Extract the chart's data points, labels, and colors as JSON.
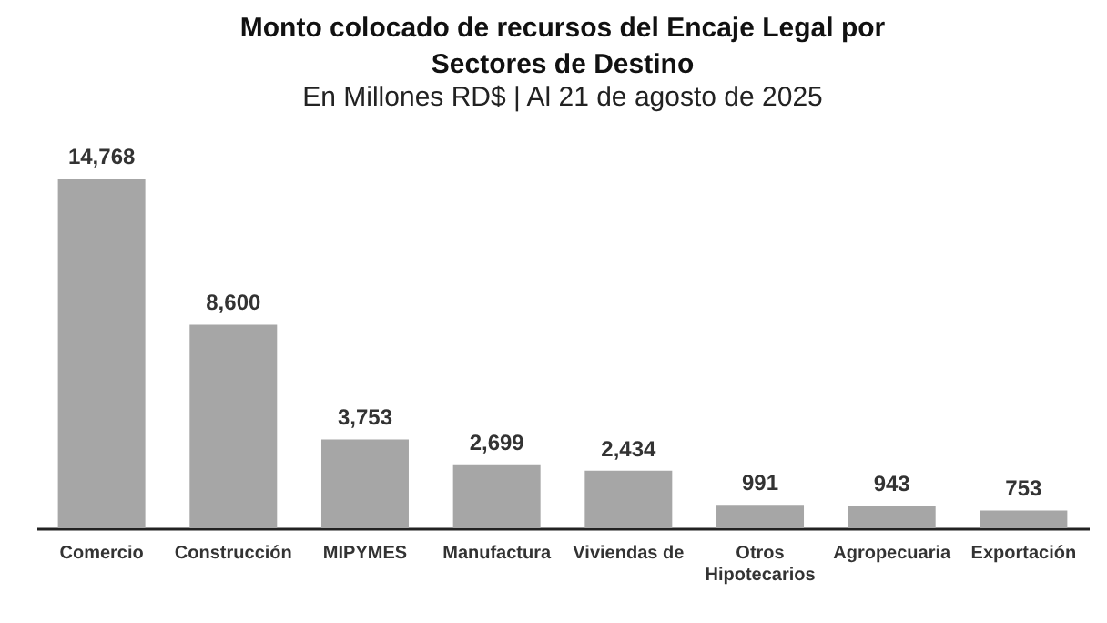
{
  "chart_data": {
    "type": "bar",
    "title": [
      "Monto colocado de recursos del Encaje Legal por",
      "Sectores de Destino"
    ],
    "subtitle": "En Millones  RD$ | Al 21 de agosto de 2025",
    "categories": [
      "Comercio",
      "Construcción",
      "MIPYMES",
      "Manufactura",
      "Viviendas de",
      "Otros Hipotecarios",
      "Agropecuaria",
      "Exportación"
    ],
    "values": [
      14768,
      8600,
      3753,
      2699,
      2434,
      991,
      943,
      753
    ],
    "value_labels": [
      "14,768",
      "8,600",
      "3,753",
      "2,699",
      "2,434",
      "991",
      "943",
      "753"
    ],
    "color": "#a6a6a6",
    "grid": false
  }
}
